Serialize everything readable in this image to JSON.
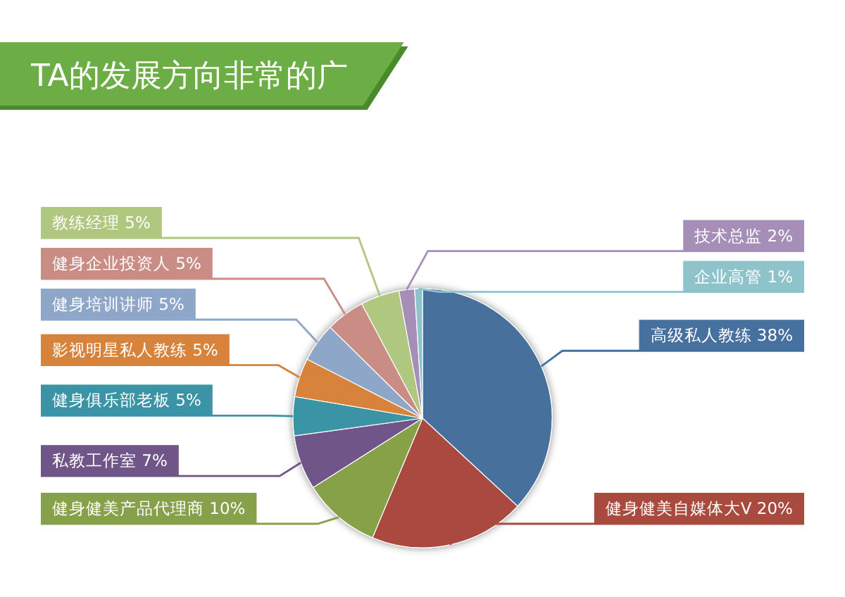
{
  "chart_data": {
    "type": "pie",
    "title": "TA的发展方向非常的广",
    "categories": [
      "高级私人教练",
      "健身健美自媒体大V",
      "健身健美产品代理商",
      "私教工作室",
      "健身俱乐部老板",
      "影视明星私人教练",
      "健身培训讲师",
      "健身企业投资人",
      "教练经理",
      "技术总监",
      "企业高管"
    ],
    "values": [
      38,
      20,
      10,
      7,
      5,
      5,
      5,
      5,
      5,
      2,
      1
    ],
    "colors": [
      "#46709d",
      "#a94a3f",
      "#87a14a",
      "#6f5588",
      "#3b93a6",
      "#d7833b",
      "#8ea6c8",
      "#c98d86",
      "#b0c77f",
      "#a58fb8",
      "#8ec3cb"
    ],
    "value_labels": [
      "38%",
      "20%",
      "10%",
      "7%",
      "5%",
      "5%",
      "5%",
      "5%",
      "5%",
      "2%",
      "1%"
    ]
  }
}
